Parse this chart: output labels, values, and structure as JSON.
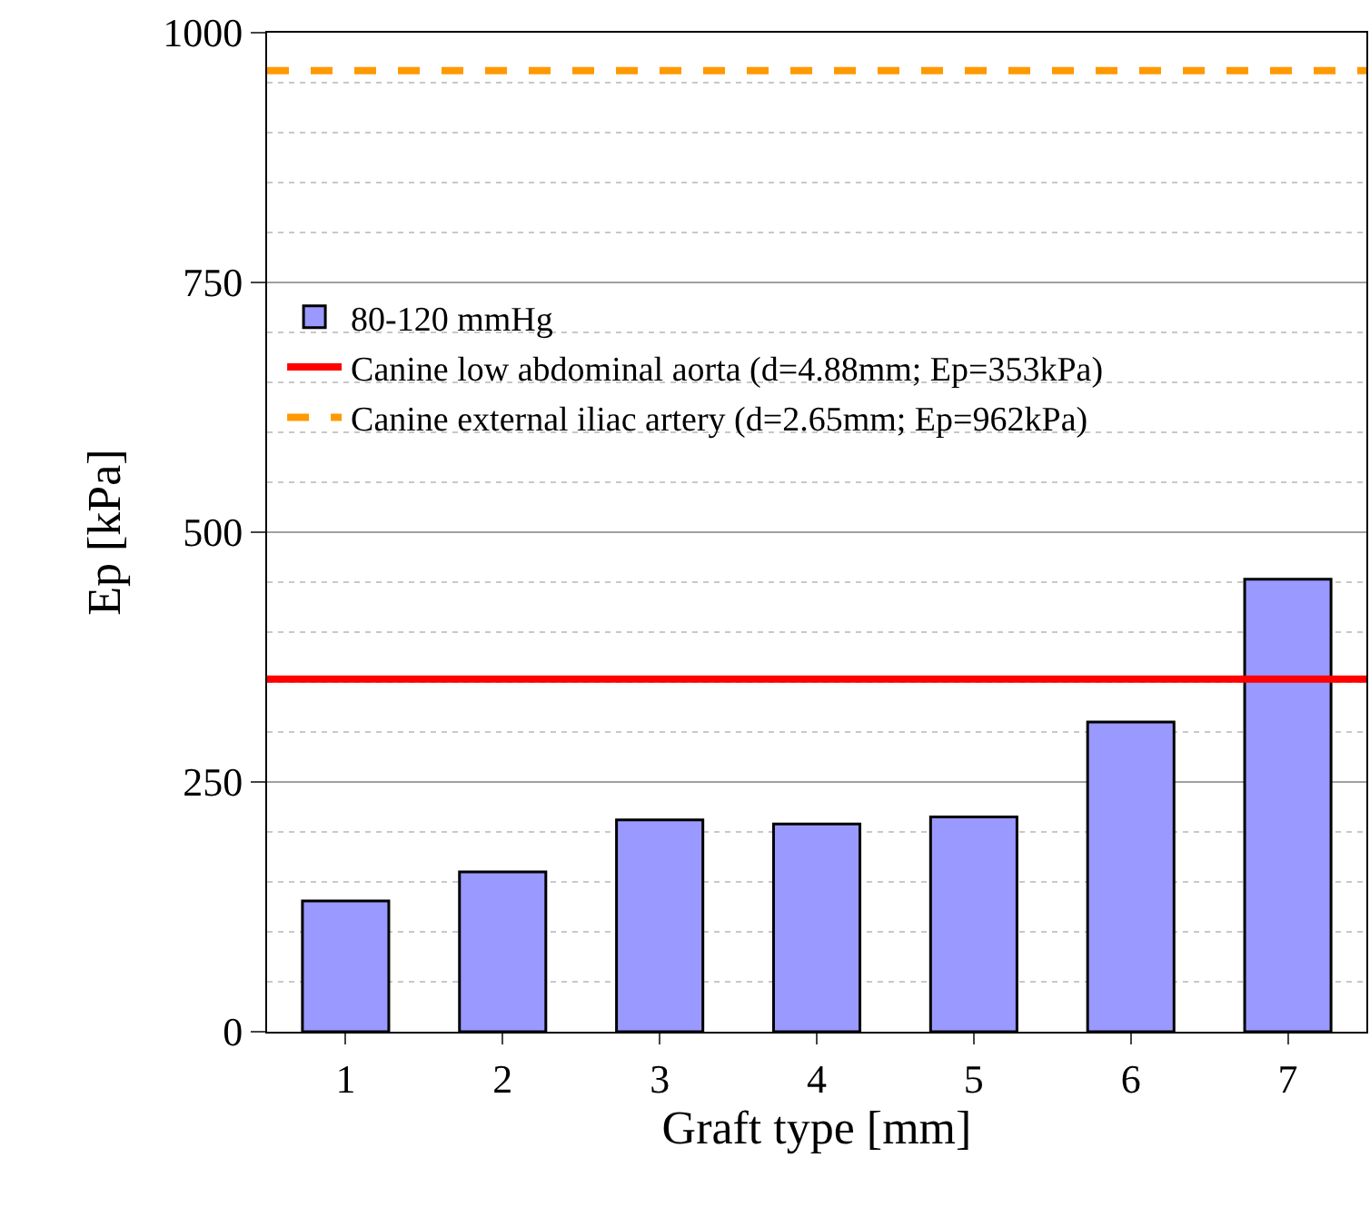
{
  "chart_data": {
    "type": "bar",
    "xlabel": "Graft type [mm]",
    "ylabel": "Ep [kPa]",
    "categories": [
      "1",
      "2",
      "3",
      "4",
      "5",
      "6",
      "7"
    ],
    "series": [
      {
        "name": "80-120 mmHg",
        "color": "#9999ff",
        "values": [
          131,
          160,
          212,
          208,
          215,
          310,
          453
        ]
      }
    ],
    "ref_lines": [
      {
        "axis": "y",
        "value": 353,
        "label": "Canine low abdominal aorta (d=4.88mm; Ep=353kPa)",
        "color": "#ff0000",
        "line_style": "solid"
      },
      {
        "axis": "y",
        "value": 962,
        "label": "Canine external iliac artery (d=2.65mm; Ep=962kPa)",
        "color": "#ff9900",
        "line_style": "dashed"
      }
    ],
    "ylim": [
      0,
      1000
    ],
    "yticks": [
      0,
      250,
      500,
      750,
      1000
    ],
    "grid": "y",
    "legend": "left"
  }
}
